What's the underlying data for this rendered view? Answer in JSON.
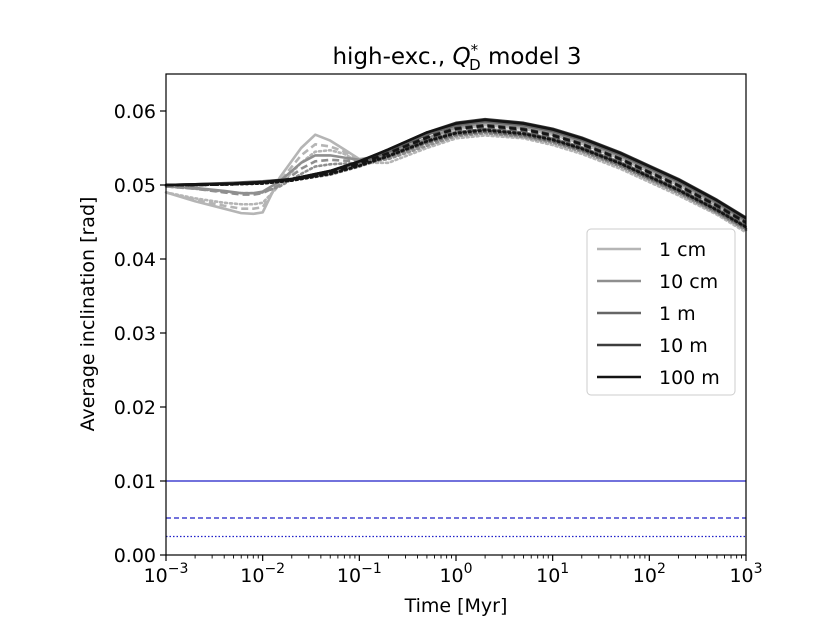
{
  "chart_data": {
    "type": "line",
    "title": {
      "prefix": "high-exc., ",
      "q_symbol": "Q",
      "q_subscript": "D",
      "q_superscript": "*",
      "suffix": " model 3"
    },
    "xlabel": "Time [Myr]",
    "ylabel": "Average inclination [rad]",
    "x_scale": "log",
    "xlim": [
      0.001,
      1000
    ],
    "ylim": [
      0.0,
      0.065
    ],
    "x_ticks": [
      {
        "value": 0.001,
        "base": "10",
        "exp": "−3"
      },
      {
        "value": 0.01,
        "base": "10",
        "exp": "−2"
      },
      {
        "value": 0.1,
        "base": "10",
        "exp": "−1"
      },
      {
        "value": 1,
        "base": "10",
        "exp": "0"
      },
      {
        "value": 10,
        "base": "10",
        "exp": "1"
      },
      {
        "value": 100,
        "base": "10",
        "exp": "2"
      },
      {
        "value": 1000,
        "base": "10",
        "exp": "3"
      }
    ],
    "y_ticks": [
      {
        "value": 0.0,
        "label": "0.00"
      },
      {
        "value": 0.01,
        "label": "0.01"
      },
      {
        "value": 0.02,
        "label": "0.02"
      },
      {
        "value": 0.03,
        "label": "0.03"
      },
      {
        "value": 0.04,
        "label": "0.04"
      },
      {
        "value": 0.05,
        "label": "0.05"
      },
      {
        "value": 0.06,
        "label": "0.06"
      }
    ],
    "grid": false,
    "legend_placement": "center-right",
    "legend": [
      {
        "label": "1 cm",
        "color": "#b5b5b5"
      },
      {
        "label": "10 cm",
        "color": "#8f8f8f"
      },
      {
        "label": "1 m",
        "color": "#666666"
      },
      {
        "label": "10 m",
        "color": "#3d3d3d"
      },
      {
        "label": "100 m",
        "color": "#141414"
      }
    ],
    "series": [
      {
        "name": "1 cm",
        "style": "solid",
        "color": "#b5b5b5",
        "x": [
          0.001,
          0.002,
          0.004,
          0.006,
          0.008,
          0.01,
          0.015,
          0.025,
          0.035,
          0.05,
          0.07,
          0.1,
          0.2,
          0.5,
          1,
          2,
          5,
          10,
          20,
          50,
          100,
          200,
          500,
          1000
        ],
        "y": [
          0.049,
          0.0478,
          0.0468,
          0.0462,
          0.0461,
          0.0463,
          0.051,
          0.055,
          0.0568,
          0.056,
          0.0548,
          0.0535,
          0.054,
          0.056,
          0.0575,
          0.0581,
          0.0576,
          0.0568,
          0.0556,
          0.0536,
          0.0518,
          0.05,
          0.0472,
          0.0448
        ]
      },
      {
        "name": "1 cm",
        "style": "dashed",
        "color": "#b5b5b5",
        "x": [
          0.001,
          0.002,
          0.004,
          0.006,
          0.008,
          0.01,
          0.015,
          0.025,
          0.035,
          0.05,
          0.07,
          0.1,
          0.2,
          0.5,
          1,
          2,
          5,
          10,
          20,
          50,
          100,
          200,
          500,
          1000
        ],
        "y": [
          0.049,
          0.048,
          0.0472,
          0.0468,
          0.0468,
          0.047,
          0.0505,
          0.054,
          0.0555,
          0.0552,
          0.0545,
          0.0533,
          0.0536,
          0.0555,
          0.0568,
          0.0573,
          0.0568,
          0.056,
          0.0548,
          0.0528,
          0.051,
          0.0492,
          0.0465,
          0.0442
        ]
      },
      {
        "name": "1 cm",
        "style": "dotted",
        "color": "#b5b5b5",
        "x": [
          0.001,
          0.002,
          0.004,
          0.006,
          0.008,
          0.01,
          0.015,
          0.025,
          0.035,
          0.05,
          0.07,
          0.1,
          0.2,
          0.5,
          1,
          2,
          5,
          10,
          20,
          50,
          100,
          200,
          500,
          1000
        ],
        "y": [
          0.049,
          0.0482,
          0.0476,
          0.0474,
          0.0474,
          0.0476,
          0.05,
          0.053,
          0.0545,
          0.0547,
          0.0542,
          0.053,
          0.053,
          0.055,
          0.0563,
          0.0567,
          0.0563,
          0.0554,
          0.0542,
          0.0522,
          0.0504,
          0.0486,
          0.046,
          0.0436
        ]
      },
      {
        "name": "10 cm",
        "style": "solid",
        "color": "#8f8f8f",
        "x": [
          0.001,
          0.002,
          0.004,
          0.006,
          0.008,
          0.01,
          0.015,
          0.025,
          0.035,
          0.05,
          0.07,
          0.1,
          0.2,
          0.5,
          1,
          2,
          5,
          10,
          20,
          50,
          100,
          200,
          500,
          1000
        ],
        "y": [
          0.0498,
          0.0496,
          0.0492,
          0.0489,
          0.0489,
          0.0491,
          0.0505,
          0.053,
          0.054,
          0.054,
          0.0537,
          0.0534,
          0.0542,
          0.0563,
          0.0578,
          0.0584,
          0.0579,
          0.0571,
          0.0559,
          0.0539,
          0.0521,
          0.0503,
          0.0475,
          0.0451
        ]
      },
      {
        "name": "10 cm",
        "style": "dashed",
        "color": "#8f8f8f",
        "x": [
          0.001,
          0.002,
          0.004,
          0.006,
          0.008,
          0.01,
          0.015,
          0.025,
          0.035,
          0.05,
          0.07,
          0.1,
          0.2,
          0.5,
          1,
          2,
          5,
          10,
          20,
          50,
          100,
          200,
          500,
          1000
        ],
        "y": [
          0.0498,
          0.0495,
          0.049,
          0.0487,
          0.0487,
          0.0489,
          0.05,
          0.0522,
          0.0532,
          0.0534,
          0.0533,
          0.0532,
          0.0538,
          0.0558,
          0.0571,
          0.0576,
          0.0571,
          0.0563,
          0.0551,
          0.0531,
          0.0513,
          0.0495,
          0.0468,
          0.0445
        ]
      },
      {
        "name": "10 cm",
        "style": "dotted",
        "color": "#8f8f8f",
        "x": [
          0.001,
          0.002,
          0.004,
          0.006,
          0.008,
          0.01,
          0.015,
          0.025,
          0.035,
          0.05,
          0.07,
          0.1,
          0.2,
          0.5,
          1,
          2,
          5,
          10,
          20,
          50,
          100,
          200,
          500,
          1000
        ],
        "y": [
          0.0498,
          0.0495,
          0.0491,
          0.0489,
          0.0489,
          0.049,
          0.0498,
          0.0515,
          0.0525,
          0.0528,
          0.0529,
          0.053,
          0.0535,
          0.0553,
          0.0566,
          0.057,
          0.0565,
          0.0557,
          0.0545,
          0.0525,
          0.0507,
          0.0489,
          0.0462,
          0.0439
        ]
      },
      {
        "name": "1 m",
        "style": "solid",
        "color": "#666666",
        "x": [
          0.001,
          0.002,
          0.005,
          0.01,
          0.02,
          0.05,
          0.1,
          0.2,
          0.5,
          1,
          2,
          5,
          10,
          20,
          50,
          100,
          200,
          500,
          1000
        ],
        "y": [
          0.05,
          0.0501,
          0.0503,
          0.0505,
          0.0508,
          0.0518,
          0.053,
          0.0545,
          0.0568,
          0.0581,
          0.0586,
          0.0581,
          0.0573,
          0.0561,
          0.0541,
          0.0523,
          0.0505,
          0.0477,
          0.0453
        ]
      },
      {
        "name": "1 m",
        "style": "dashed",
        "color": "#666666",
        "x": [
          0.001,
          0.002,
          0.005,
          0.01,
          0.02,
          0.05,
          0.1,
          0.2,
          0.5,
          1,
          2,
          5,
          10,
          20,
          50,
          100,
          200,
          500,
          1000
        ],
        "y": [
          0.05,
          0.05,
          0.0502,
          0.0504,
          0.0507,
          0.0516,
          0.0527,
          0.0541,
          0.0562,
          0.0574,
          0.0578,
          0.0573,
          0.0565,
          0.0553,
          0.0533,
          0.0515,
          0.0497,
          0.047,
          0.0447
        ]
      },
      {
        "name": "1 m",
        "style": "dotted",
        "color": "#666666",
        "x": [
          0.001,
          0.002,
          0.005,
          0.01,
          0.02,
          0.05,
          0.1,
          0.2,
          0.5,
          1,
          2,
          5,
          10,
          20,
          50,
          100,
          200,
          500,
          1000
        ],
        "y": [
          0.05,
          0.05,
          0.0501,
          0.0503,
          0.0506,
          0.0514,
          0.0525,
          0.0538,
          0.0557,
          0.0568,
          0.0572,
          0.0567,
          0.0559,
          0.0547,
          0.0527,
          0.0509,
          0.0491,
          0.0464,
          0.0441
        ]
      },
      {
        "name": "10 m",
        "style": "solid",
        "color": "#3d3d3d",
        "x": [
          0.001,
          0.002,
          0.005,
          0.01,
          0.02,
          0.05,
          0.1,
          0.2,
          0.5,
          1,
          2,
          5,
          10,
          20,
          50,
          100,
          200,
          500,
          1000
        ],
        "y": [
          0.05,
          0.0501,
          0.0502,
          0.0504,
          0.0508,
          0.0519,
          0.0532,
          0.0548,
          0.0571,
          0.0584,
          0.0589,
          0.0584,
          0.0576,
          0.0564,
          0.0544,
          0.0526,
          0.0508,
          0.048,
          0.0456
        ]
      },
      {
        "name": "10 m",
        "style": "dashed",
        "color": "#3d3d3d",
        "x": [
          0.001,
          0.002,
          0.005,
          0.01,
          0.02,
          0.05,
          0.1,
          0.2,
          0.5,
          1,
          2,
          5,
          10,
          20,
          50,
          100,
          200,
          500,
          1000
        ],
        "y": [
          0.05,
          0.05,
          0.0501,
          0.0503,
          0.0507,
          0.0517,
          0.0529,
          0.0544,
          0.0565,
          0.0577,
          0.0581,
          0.0576,
          0.0568,
          0.0556,
          0.0536,
          0.0518,
          0.05,
          0.0473,
          0.045
        ]
      },
      {
        "name": "10 m",
        "style": "dotted",
        "color": "#3d3d3d",
        "x": [
          0.001,
          0.002,
          0.005,
          0.01,
          0.02,
          0.05,
          0.1,
          0.2,
          0.5,
          1,
          2,
          5,
          10,
          20,
          50,
          100,
          200,
          500,
          1000
        ],
        "y": [
          0.05,
          0.05,
          0.0501,
          0.0502,
          0.0506,
          0.0515,
          0.0526,
          0.054,
          0.056,
          0.0571,
          0.0575,
          0.057,
          0.0562,
          0.055,
          0.053,
          0.0512,
          0.0494,
          0.0467,
          0.0444
        ]
      },
      {
        "name": "100 m",
        "style": "solid",
        "color": "#141414",
        "x": [
          0.001,
          0.002,
          0.005,
          0.01,
          0.02,
          0.05,
          0.1,
          0.2,
          0.5,
          1,
          2,
          5,
          10,
          20,
          50,
          100,
          200,
          500,
          1000
        ],
        "y": [
          0.05,
          0.0501,
          0.0502,
          0.0504,
          0.0508,
          0.0519,
          0.0532,
          0.0548,
          0.0571,
          0.0583,
          0.0588,
          0.0583,
          0.0575,
          0.0563,
          0.0543,
          0.0525,
          0.0507,
          0.0479,
          0.0455
        ]
      },
      {
        "name": "100 m",
        "style": "dashed",
        "color": "#141414",
        "x": [
          0.001,
          0.002,
          0.005,
          0.01,
          0.02,
          0.05,
          0.1,
          0.2,
          0.5,
          1,
          2,
          5,
          10,
          20,
          50,
          100,
          200,
          500,
          1000
        ],
        "y": [
          0.05,
          0.05,
          0.0501,
          0.0503,
          0.0507,
          0.0517,
          0.0529,
          0.0543,
          0.0564,
          0.0576,
          0.058,
          0.0575,
          0.0567,
          0.0555,
          0.0535,
          0.0517,
          0.0499,
          0.0472,
          0.0449
        ]
      },
      {
        "name": "100 m",
        "style": "dotted",
        "color": "#141414",
        "x": [
          0.001,
          0.002,
          0.005,
          0.01,
          0.02,
          0.05,
          0.1,
          0.2,
          0.5,
          1,
          2,
          5,
          10,
          20,
          50,
          100,
          200,
          500,
          1000
        ],
        "y": [
          0.05,
          0.05,
          0.0501,
          0.0502,
          0.0506,
          0.0515,
          0.0526,
          0.0539,
          0.0559,
          0.057,
          0.0574,
          0.0569,
          0.0561,
          0.0549,
          0.0529,
          0.0511,
          0.0493,
          0.0466,
          0.0443
        ]
      }
    ],
    "reference_lines": [
      {
        "y": 0.01,
        "style": "solid",
        "color": "#1f1fc8"
      },
      {
        "y": 0.005,
        "style": "dashed",
        "color": "#1f1fc8"
      },
      {
        "y": 0.0025,
        "style": "dotted",
        "color": "#1f1fc8"
      }
    ]
  }
}
